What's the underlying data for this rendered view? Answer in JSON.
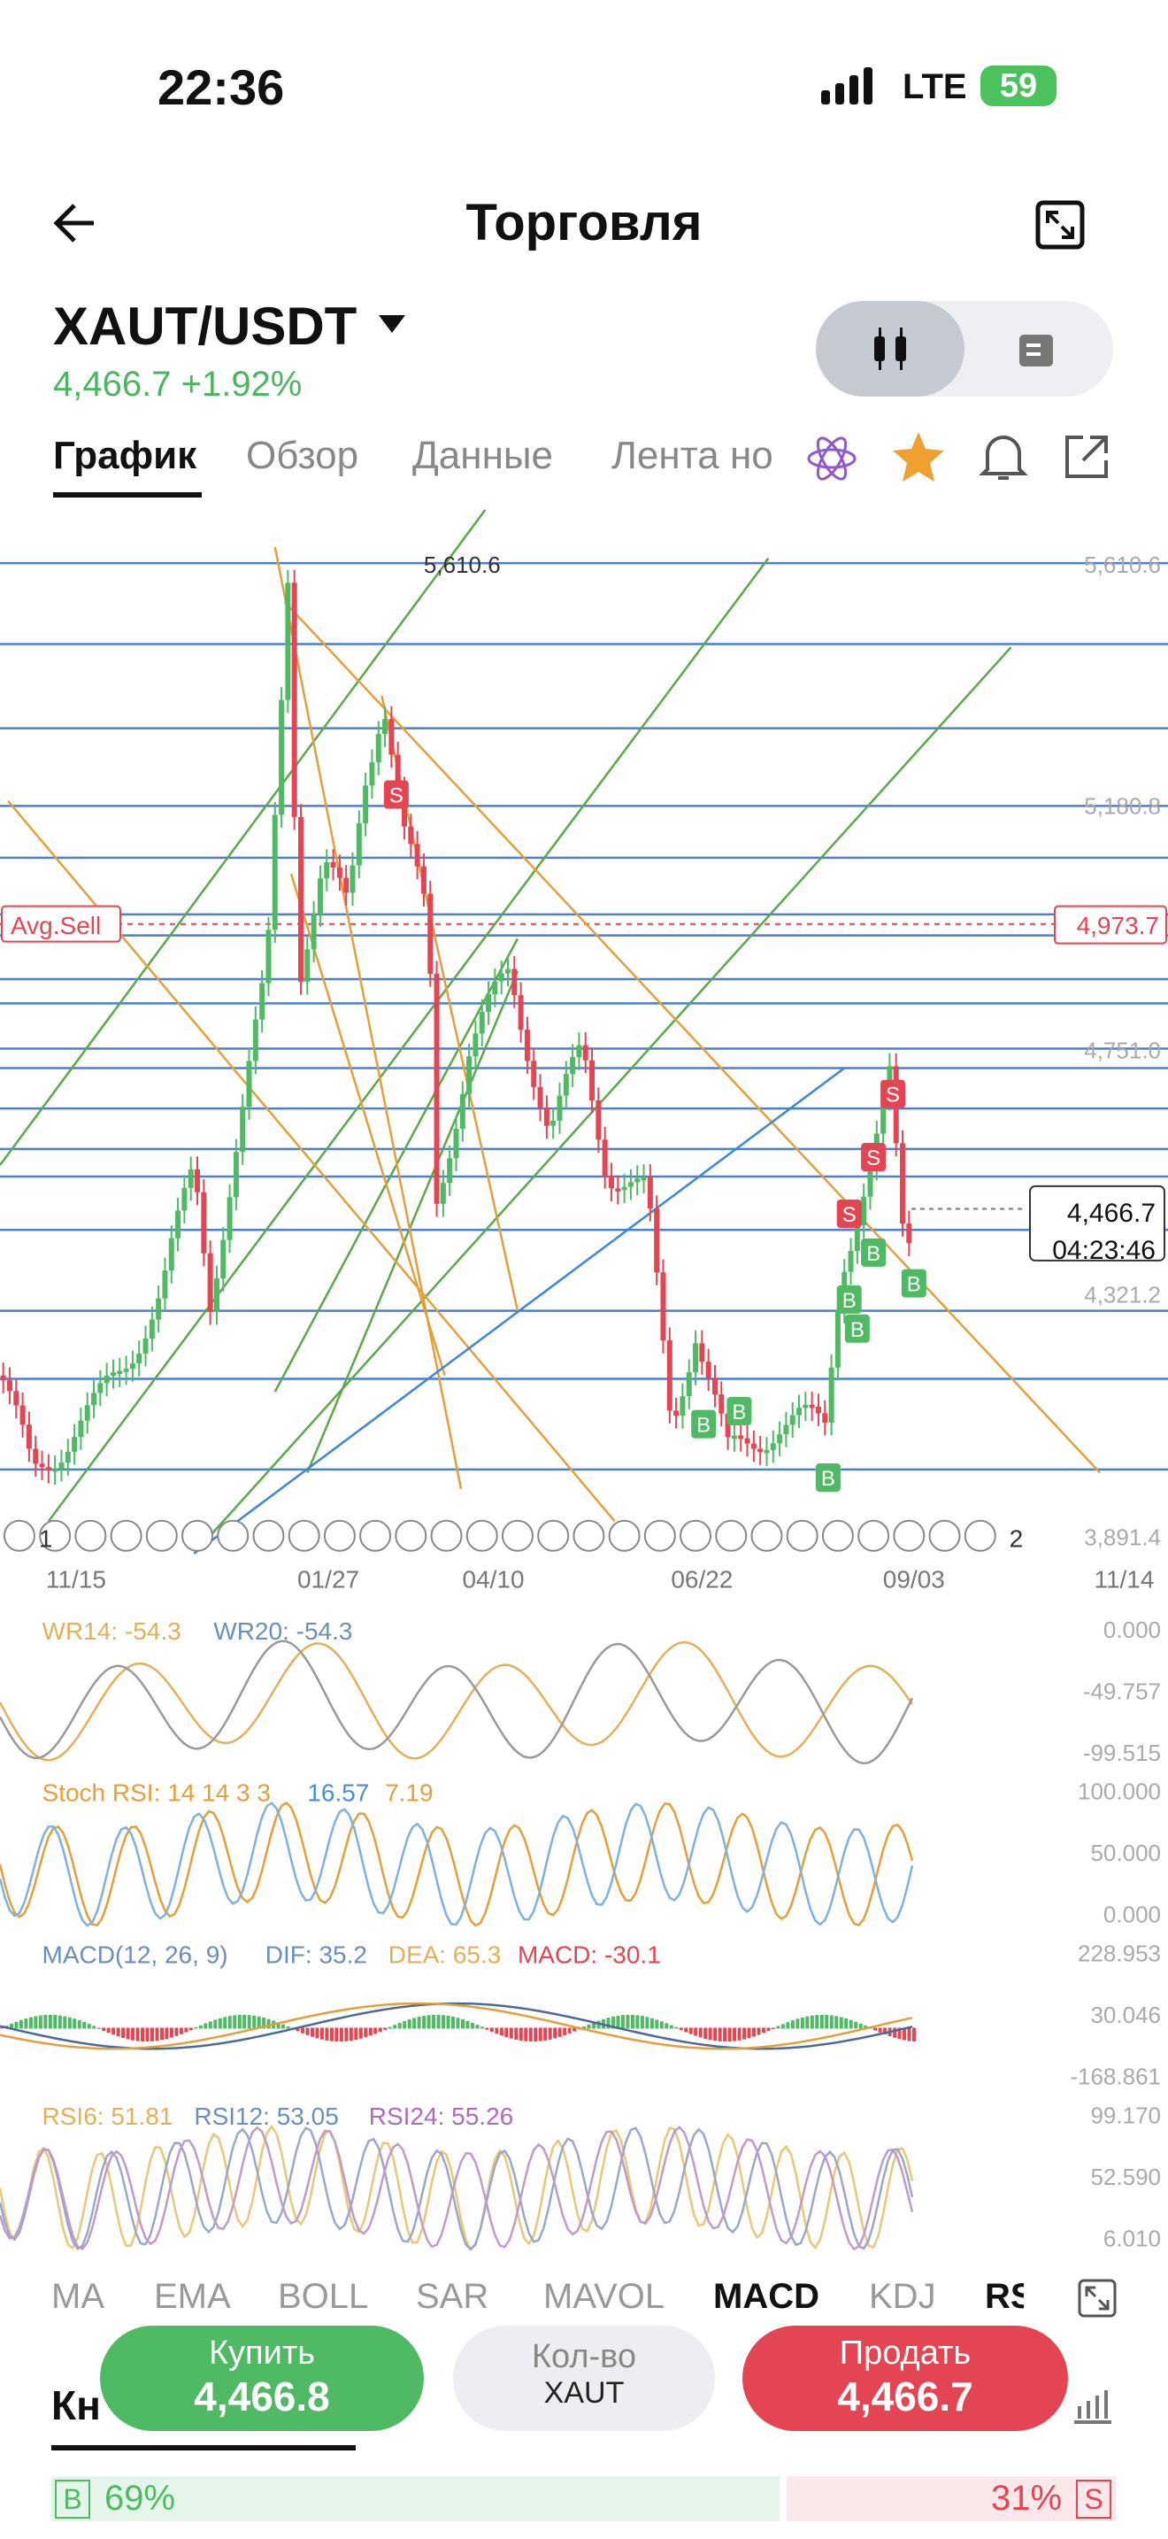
{
  "status": {
    "time": "22:36",
    "network": "LTE",
    "battery": "59"
  },
  "header": {
    "title": "Торговля"
  },
  "pair": {
    "symbol": "XAUT/USDT",
    "price": "4,466.7",
    "change": "+1.92%"
  },
  "tabs": [
    "График",
    "Обзор",
    "Данные",
    "Лента но"
  ],
  "chart": {
    "peak_label": "5,610.6",
    "avg_label": "Avg.Sell",
    "price_axis": [
      "5,610.6",
      "5,180.8",
      "4,751.0",
      "4,321.2",
      "3,891.4"
    ],
    "avg_price": "4,973.7",
    "last_price": "4,466.7",
    "countdown": "04:23:46",
    "dates": [
      "11/15",
      "01/27",
      "04/10",
      "06/22",
      "09/03",
      "11/14"
    ],
    "sell_marker": "S",
    "buy_marker": "B",
    "event_counts": [
      "1",
      "2"
    ]
  },
  "indicators": {
    "wr": {
      "labels": [
        "WR14: -54.3",
        "WR20: -54.3"
      ],
      "axis": [
        "0.000",
        "-49.757",
        "-99.515"
      ]
    },
    "stoch": {
      "labels": [
        "Stoch RSI: 14 14 3 3",
        "16.57",
        "7.19"
      ],
      "axis": [
        "100.000",
        "50.000",
        "0.000"
      ]
    },
    "macd": {
      "labels": [
        "MACD(12, 26, 9)",
        "DIF: 35.2",
        "DEA: 65.3",
        "MACD: -30.1"
      ],
      "axis": [
        "228.953",
        "30.046",
        "-168.861"
      ]
    },
    "rsi": {
      "labels": [
        "RSI6: 51.81",
        "RSI12: 53.05",
        "RSI24: 55.26"
      ],
      "axis": [
        "99.170",
        "52.590",
        "6.010"
      ]
    }
  },
  "indicator_tabs": [
    "MA",
    "EMA",
    "BOLL",
    "SAR",
    "MAVOL",
    "MACD",
    "KDJ",
    "RS"
  ],
  "actions": {
    "buy": "Купить",
    "buy_price": "4,466.8",
    "qty": "Кол-во",
    "qty_unit": "XAUT",
    "sell": "Продать",
    "sell_price": "4,466.7"
  },
  "footer": {
    "section": "Кн",
    "buy_tag": "B",
    "buy_share": "69%",
    "sell_share": "31%",
    "sell_tag": "S"
  }
}
